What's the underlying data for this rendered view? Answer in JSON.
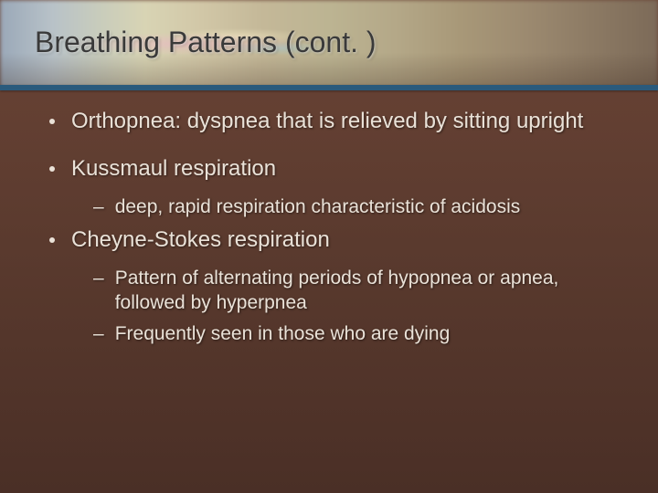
{
  "slide": {
    "title": "Breathing Patterns (cont. )",
    "title_color": "#3a3a3a",
    "title_fontsize": 32,
    "background_gradient": [
      "#6b4436",
      "#5a3a2e",
      "#4a2f26"
    ],
    "accent_bar_color": "#2a5a7c",
    "body_text_color": "#eae2d8",
    "body_fontsize_l1": 24,
    "body_fontsize_l2": 21,
    "bullets": [
      {
        "level": 1,
        "text": "Orthopnea: dyspnea that is relieved by sitting upright"
      },
      {
        "level": 1,
        "text": "Kussmaul respiration"
      },
      {
        "level": 2,
        "text": "deep, rapid respiration characteristic of acidosis"
      },
      {
        "level": 1,
        "text": "Cheyne-Stokes respiration"
      },
      {
        "level": 2,
        "text": "Pattern of alternating periods of hypopnea or apnea, followed by hyperpnea"
      },
      {
        "level": 2,
        "text": "Frequently seen in those who are dying"
      }
    ]
  }
}
